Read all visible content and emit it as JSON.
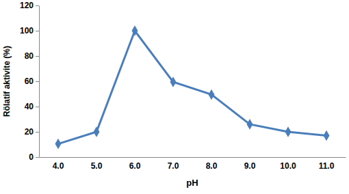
{
  "chart_data": {
    "type": "line",
    "x_label": "pH",
    "y_label": "Rölatif aktivite (%)",
    "categories": [
      "4.0",
      "5.0",
      "6.0",
      "7.0",
      "8.0",
      "9.0",
      "10.0",
      "11.0"
    ],
    "values": [
      10.5,
      20,
      100,
      59.5,
      49.5,
      26,
      20,
      17
    ],
    "color": "#4a7ebb",
    "marker": "diamond",
    "ylim": [
      0,
      120
    ],
    "yticks": [
      0,
      20,
      40,
      60,
      80,
      100,
      120
    ],
    "grid": false
  }
}
